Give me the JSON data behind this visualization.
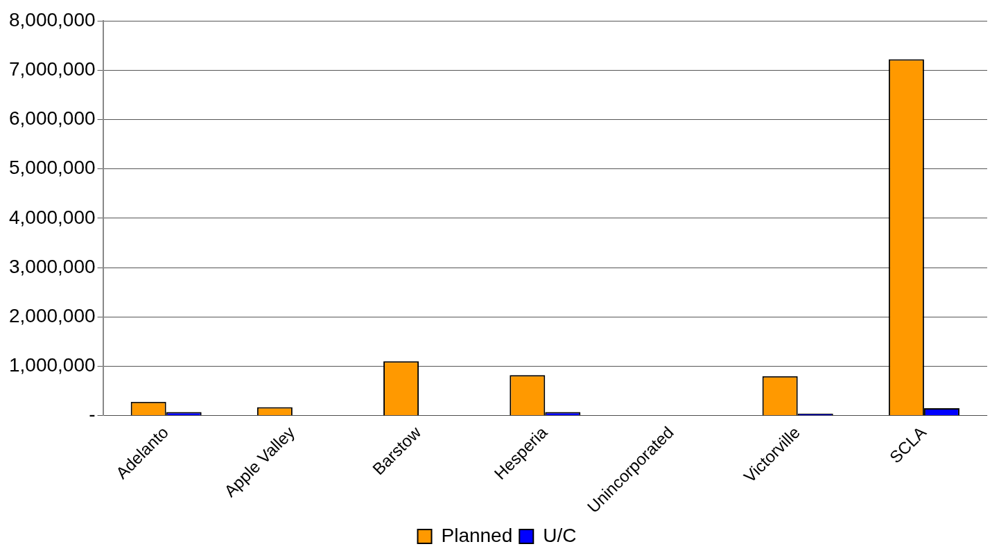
{
  "chart_data": {
    "type": "bar",
    "categories": [
      "Adelanto",
      "Apple Valley",
      "Barstow",
      "Hesperia",
      "Unincorporated",
      "Victorville",
      "SCLA"
    ],
    "series": [
      {
        "name": "Planned",
        "color": "#ff9900",
        "values": [
          280000,
          170000,
          1100000,
          820000,
          null,
          800000,
          7220000
        ]
      },
      {
        "name": "U/C",
        "color": "#0000ff",
        "values": [
          70000,
          null,
          null,
          70000,
          null,
          40000,
          150000
        ]
      }
    ],
    "ylim": [
      0,
      8000000
    ],
    "yticks": [
      {
        "value": 0,
        "label": "-"
      },
      {
        "value": 1000000,
        "label": "1,000,000"
      },
      {
        "value": 2000000,
        "label": "2,000,000"
      },
      {
        "value": 3000000,
        "label": "3,000,000"
      },
      {
        "value": 4000000,
        "label": "4,000,000"
      },
      {
        "value": 5000000,
        "label": "5,000,000"
      },
      {
        "value": 6000000,
        "label": "6,000,000"
      },
      {
        "value": 7000000,
        "label": "7,000,000"
      },
      {
        "value": 8000000,
        "label": "8,000,000"
      }
    ],
    "grid": "y",
    "legend": "bottom"
  }
}
